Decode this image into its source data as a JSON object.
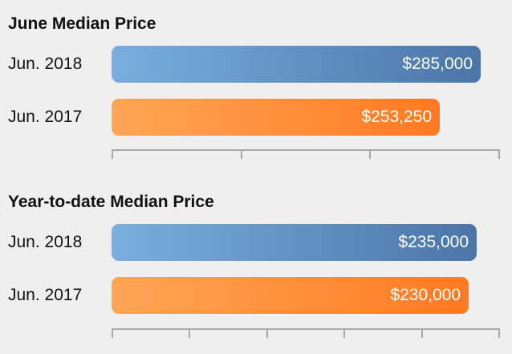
{
  "chart_data": [
    {
      "type": "bar",
      "title": "June Median Price",
      "categories": [
        "Jun. 2018",
        "Jun. 2017"
      ],
      "values": [
        285000,
        253250
      ],
      "value_labels": [
        "$285,000",
        "$253,250"
      ],
      "colors": [
        "#5a8ac2",
        "#ff8c33"
      ],
      "xlim": [
        0,
        300000
      ],
      "tick_count": 4,
      "orientation": "horizontal",
      "grid": false
    },
    {
      "type": "bar",
      "title": "Year-to-date Median Price",
      "categories": [
        "Jun. 2018",
        "Jun. 2017"
      ],
      "values": [
        235000,
        230000
      ],
      "value_labels": [
        "$235,000",
        "$230,000"
      ],
      "colors": [
        "#5a8ac2",
        "#ff8c33"
      ],
      "xlim": [
        0,
        250000
      ],
      "tick_count": 6,
      "orientation": "horizontal",
      "grid": false
    }
  ]
}
